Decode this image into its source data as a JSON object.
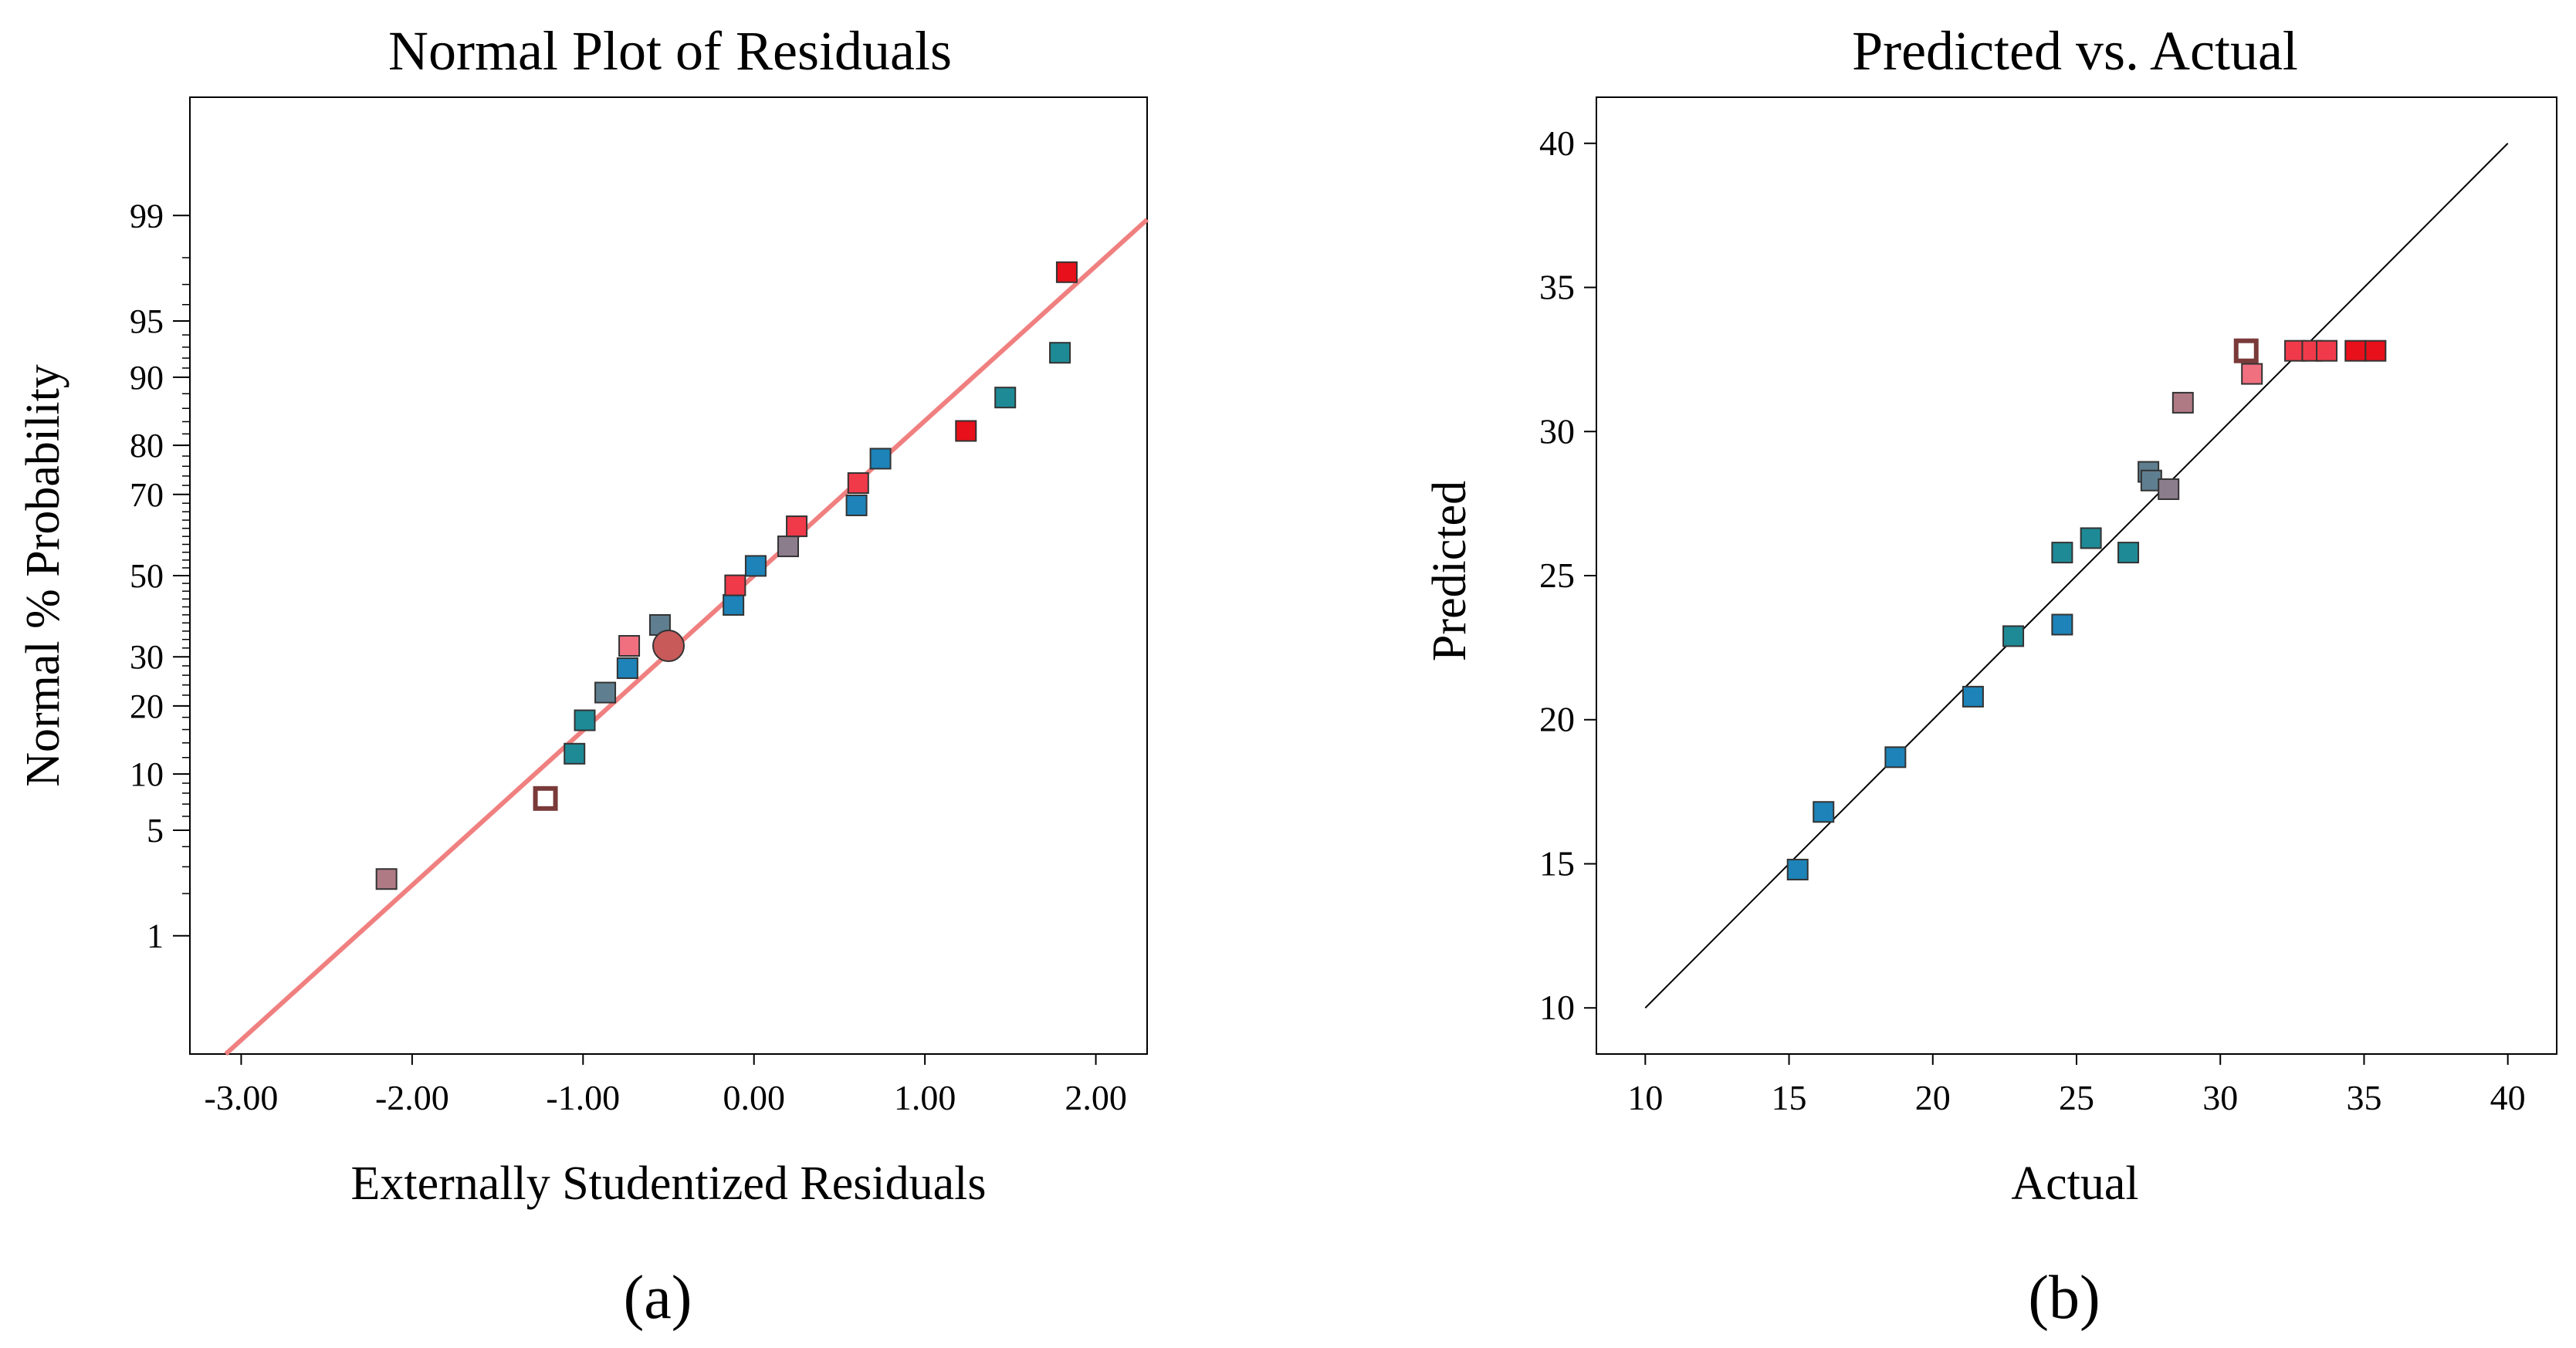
{
  "chart_data": [
    {
      "type": "scatter",
      "panel_label": "(a)",
      "title": "Normal Plot of Residuals",
      "xlabel": "Externally Studentized Residuals",
      "ylabel": "Normal % Probability",
      "xlim": [
        -3.3,
        2.3
      ],
      "ylim_probability": [
        0.1,
        99.9
      ],
      "x_ticks": [
        -3,
        -2,
        -1,
        0,
        1,
        2
      ],
      "x_tick_labels": [
        "-3.00",
        "-2.00",
        "-1.00",
        "0.00",
        "1.00",
        "2.00"
      ],
      "y_ticks": [
        1,
        5,
        10,
        20,
        30,
        50,
        70,
        80,
        90,
        95,
        99
      ],
      "y_tick_labels": [
        "1",
        "5",
        "10",
        "20",
        "30",
        "50",
        "70",
        "80",
        "90",
        "95",
        "99"
      ],
      "reference_line": {
        "slope": 1.0,
        "intercept": 0.0,
        "color": "#f08080"
      },
      "points": [
        {
          "x": -2.15,
          "p": 2.5,
          "color": "#b07a85"
        },
        {
          "x": -1.22,
          "p": 7.5,
          "color": "#ffffff",
          "stroke": "#7a3a3a",
          "hollow": true
        },
        {
          "x": -1.05,
          "p": 12.5,
          "color": "#1e8a96"
        },
        {
          "x": -0.99,
          "p": 17.5,
          "color": "#1e8a96"
        },
        {
          "x": -0.87,
          "p": 22.5,
          "color": "#5f7f90"
        },
        {
          "x": -0.74,
          "p": 27.5,
          "color": "#1d83b8"
        },
        {
          "x": -0.73,
          "p": 32.5,
          "color": "#f07080"
        },
        {
          "x": -0.55,
          "p": 37.5,
          "color": "#5f7f90"
        },
        {
          "x": -0.5,
          "p": 32.5,
          "color": "#c85a5a",
          "shape": "circle"
        },
        {
          "x": -0.12,
          "p": 42.5,
          "color": "#1d83b8"
        },
        {
          "x": -0.11,
          "p": 47.5,
          "color": "#f03a4a"
        },
        {
          "x": 0.01,
          "p": 52.5,
          "color": "#1d83b8"
        },
        {
          "x": 0.2,
          "p": 57.5,
          "color": "#8c7d8c"
        },
        {
          "x": 0.25,
          "p": 62.5,
          "color": "#f03a4a"
        },
        {
          "x": 0.6,
          "p": 67.5,
          "color": "#1d83b8"
        },
        {
          "x": 0.61,
          "p": 72.5,
          "color": "#f03a4a"
        },
        {
          "x": 0.74,
          "p": 77.5,
          "color": "#1d83b8"
        },
        {
          "x": 1.24,
          "p": 82.5,
          "color": "#e8101a"
        },
        {
          "x": 1.47,
          "p": 87.5,
          "color": "#1e8a96"
        },
        {
          "x": 1.79,
          "p": 92.5,
          "color": "#1e8a96"
        },
        {
          "x": 1.83,
          "p": 97.5,
          "color": "#e8101a"
        }
      ]
    },
    {
      "type": "scatter",
      "panel_label": "(b)",
      "title": "Predicted vs. Actual",
      "xlabel": "Actual",
      "ylabel": "Predicted",
      "xlim": [
        8.3,
        41.7
      ],
      "ylim": [
        8.4,
        41.6
      ],
      "x_ticks": [
        10,
        15,
        20,
        25,
        30,
        35,
        40
      ],
      "x_tick_labels": [
        "10",
        "15",
        "20",
        "25",
        "30",
        "35",
        "40"
      ],
      "y_ticks": [
        10,
        15,
        20,
        25,
        30,
        35,
        40
      ],
      "y_tick_labels": [
        "10",
        "15",
        "20",
        "25",
        "30",
        "35",
        "40"
      ],
      "reference_line": {
        "from": [
          10,
          10
        ],
        "to": [
          40,
          40
        ],
        "color": "#000000"
      },
      "points": [
        {
          "x": 15.3,
          "y": 14.8,
          "color": "#1d83b8"
        },
        {
          "x": 16.2,
          "y": 16.8,
          "color": "#1d83b8"
        },
        {
          "x": 18.7,
          "y": 18.7,
          "color": "#1d83b8"
        },
        {
          "x": 21.4,
          "y": 20.8,
          "color": "#1d83b8"
        },
        {
          "x": 22.8,
          "y": 22.9,
          "color": "#1e8a96"
        },
        {
          "x": 24.5,
          "y": 23.3,
          "color": "#1d83b8"
        },
        {
          "x": 24.5,
          "y": 25.8,
          "color": "#1e8a96"
        },
        {
          "x": 25.5,
          "y": 26.3,
          "color": "#1e8a96"
        },
        {
          "x": 26.8,
          "y": 25.8,
          "color": "#1e8a96"
        },
        {
          "x": 27.5,
          "y": 28.6,
          "color": "#5f7f90"
        },
        {
          "x": 27.6,
          "y": 28.3,
          "color": "#5f7f90"
        },
        {
          "x": 28.2,
          "y": 28.0,
          "color": "#8c7d8c"
        },
        {
          "x": 28.7,
          "y": 31.0,
          "color": "#b07a85"
        },
        {
          "x": 30.9,
          "y": 32.8,
          "color": "#ffffff",
          "stroke": "#7a3a3a",
          "hollow": true
        },
        {
          "x": 31.1,
          "y": 32.0,
          "color": "#f07080"
        },
        {
          "x": 32.6,
          "y": 32.8,
          "color": "#f03a4a"
        },
        {
          "x": 33.2,
          "y": 32.8,
          "color": "#f03a4a"
        },
        {
          "x": 33.7,
          "y": 32.8,
          "color": "#f03a4a"
        },
        {
          "x": 34.7,
          "y": 32.8,
          "color": "#e8101a"
        },
        {
          "x": 35.4,
          "y": 32.8,
          "color": "#e8101a"
        }
      ]
    }
  ]
}
